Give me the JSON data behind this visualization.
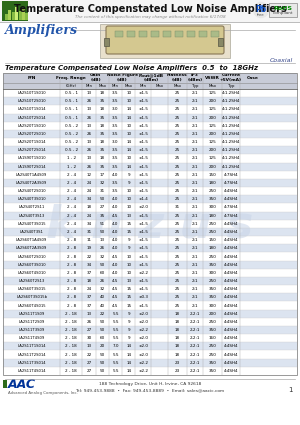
{
  "title": "Temperature Compenstated Low Noise Amplifiers",
  "subtitle": "The content of this specification may change without notification 6/17/08",
  "section_title": "Amplifiers",
  "coaxial_label": "Coaxial",
  "table_title": "Temperature Compensated Low Noise Amplifiers  0.5  to  18GHz",
  "rows": [
    [
      "LA2S10T1S010",
      "0.5 - 1",
      "13",
      "18",
      "3.5",
      "10",
      "±1.5",
      "25",
      "2:1",
      "125",
      "4:1.2SH4"
    ],
    [
      "LA2S10T2S010",
      "0.5 - 1",
      "26",
      "35",
      "3.5",
      "10",
      "±1.5",
      "25",
      "2:1",
      "200",
      "4:1.2SH4"
    ],
    [
      "LA2S10T1S014",
      "0.5 - 1",
      "13",
      "18",
      "3.0",
      "14",
      "±1.5",
      "25",
      "2:1",
      "125",
      "4:1.2SH4"
    ],
    [
      "LA2S10T2S014",
      "0.5 - 1",
      "26",
      "35",
      "3.5",
      "14",
      "±1.5",
      "25",
      "2:1",
      "200",
      "4:1.2SH4"
    ],
    [
      "LA2S20T1S010",
      "0.5 - 2",
      "13",
      "18",
      "3.5",
      "10",
      "±1.5",
      "25",
      "2:1",
      "125",
      "4:1.2SH4"
    ],
    [
      "LA2S20T2S010",
      "0.5 - 2",
      "26",
      "35",
      "3.5",
      "10",
      "±1.5",
      "25",
      "2:1",
      "200",
      "4:1.2SH4"
    ],
    [
      "LA2S20T1S014",
      "0.5 - 2",
      "13",
      "18",
      "3.0",
      "14",
      "±1.5",
      "25",
      "2:1",
      "125",
      "4:1.2SH4"
    ],
    [
      "LA2S20T2S014",
      "0.5 - 2",
      "26",
      "35",
      "3.5",
      "14",
      "±1.5",
      "25",
      "2:1",
      "200",
      "4:1.2SH4"
    ],
    [
      "LA1S90T1S010",
      "1 - 2",
      "13",
      "18",
      "3.5",
      "10",
      "±1.5",
      "25",
      "2:1",
      "125",
      "4:1.2SH4"
    ],
    [
      "LA1S90T2S014",
      "1 - 2",
      "26",
      "35",
      "3.5",
      "14",
      "±1.5",
      "25",
      "2:1",
      "200",
      "4:1.2SH4"
    ],
    [
      "LA2S40T1A4S09",
      "2 - 4",
      "12",
      "17",
      "4.0",
      "9",
      "±1.5",
      "25",
      "2:1",
      "150",
      "4:7SH4"
    ],
    [
      "LA2S40T2A3S09",
      "2 - 4",
      "24",
      "32",
      "3.5",
      "9",
      "±1.5",
      "25",
      "2:1",
      "180",
      "4:7SH4"
    ],
    [
      "LA2S40T2S010",
      "2 - 4",
      "24",
      "31",
      "3.5",
      "10",
      "±1.5",
      "25",
      "2:1",
      "250",
      "4:4SH4"
    ],
    [
      "LA2S40T3S010",
      "2 - 4",
      "34",
      "50",
      "4.0",
      "10",
      "±1.4",
      "25",
      "2:1",
      "350",
      "4:4SH4"
    ],
    [
      "LA2S40T2S11",
      "2 - 4",
      "18",
      "27",
      "4.0",
      "10",
      "±2.0",
      "31",
      "2:1",
      "300",
      "4:7SH4"
    ],
    [
      "LA2S40T3S13",
      "2 - 4",
      "24",
      "35",
      "4.5",
      "13",
      "±1.5",
      "25",
      "2:1",
      "180",
      "4:7SH4"
    ],
    [
      "LA2S40T3S015",
      "2 - 4",
      "34",
      "51",
      "4.0",
      "15",
      "±1.5",
      "25",
      "2:1",
      "250",
      "4:4SH4"
    ],
    [
      "LA2S40T3S1",
      "2 - 4",
      "31",
      "50",
      "4.0",
      "15",
      "±1.5",
      "25",
      "2:1",
      "250",
      "4:4SH4"
    ],
    [
      "LA2S60T1A4S09",
      "2 - 8",
      "11",
      "13",
      "4.0",
      "9",
      "±1.5",
      "25",
      "2:1",
      "150",
      "4:4SH4"
    ],
    [
      "LA2S60T2A3S09",
      "2 - 8",
      "19",
      "26",
      "4.0",
      "9",
      "±1.5",
      "25",
      "2:1",
      "180",
      "4:4SH4"
    ],
    [
      "LA2S60T2S010",
      "2 - 8",
      "22",
      "32",
      "4.5",
      "10",
      "±1.5",
      "25",
      "2:1",
      "250",
      "4:4SH4"
    ],
    [
      "LA2S60T3S010",
      "2 - 8",
      "34",
      "50",
      "4.0",
      "10",
      "±1.5",
      "25",
      "2:1",
      "350",
      "4:4SH4"
    ],
    [
      "LA2S60T4S010",
      "2 - 8",
      "37",
      "60",
      "4.0",
      "10",
      "±2.2",
      "25",
      "2:1",
      "300",
      "4:4SH4"
    ],
    [
      "LA2S60T2S13",
      "2 - 8",
      "18",
      "26",
      "4.5",
      "13",
      "±1.5",
      "25",
      "2:1",
      "250",
      "4:4SH4"
    ],
    [
      "LA2S60T3S015",
      "2 - 8",
      "24",
      "32",
      "4.5",
      "15",
      "±1.5",
      "25",
      "2:1",
      "350",
      "4:4SH4"
    ],
    [
      "LA2S60T3S015b",
      "2 - 8",
      "37",
      "40",
      "4.5",
      "15",
      "±0.3",
      "25",
      "2:1",
      "350",
      "4:4SH4"
    ],
    [
      "LA2S60T4S015",
      "2 - 8",
      "37",
      "40",
      "4.5",
      "15",
      "±1.5",
      "25",
      "2:1",
      "300",
      "4:4SH4"
    ],
    [
      "LA2S11T1S09",
      "2 - 18",
      "13",
      "22",
      "5.5",
      "9",
      "±2.0",
      "18",
      "2.2:1",
      "200",
      "4:4SH4"
    ],
    [
      "LA2S11T2S09",
      "2 - 18",
      "26",
      "50",
      "5.5",
      "9",
      "±2.0",
      "18",
      "2.2:1",
      "250",
      "4:4SH4"
    ],
    [
      "LA2S11T3S09",
      "2 - 18",
      "27",
      "50",
      "5.5",
      "9",
      "±2.2",
      "18",
      "2.2:1",
      "350",
      "4:4SH4"
    ],
    [
      "LA2S11T4S09",
      "2 - 18",
      "30",
      "60",
      "5.5",
      "9",
      "±2.0",
      "18",
      "2.2:1",
      "160",
      "4:4SH4"
    ],
    [
      "LA2S11T1S014",
      "2 - 18",
      "13",
      "20",
      "7.0",
      "14",
      "±2.0",
      "18",
      "2.2:1",
      "250",
      "4:4SH4"
    ],
    [
      "LA2S11T2S014",
      "2 - 18",
      "22",
      "50",
      "5.5",
      "14",
      "±2.0",
      "18",
      "2.2:1",
      "250",
      "4:4SH4"
    ],
    [
      "LA2S11T3S014",
      "2 - 18",
      "27",
      "50",
      "5.5",
      "14",
      "±2.2",
      "23",
      "2.2:1",
      "350",
      "4:4SH4"
    ],
    [
      "LA2S11T4S014",
      "2 - 18",
      "27",
      "50",
      "5.5",
      "14",
      "±2.2",
      "23",
      "2.2:1",
      "350",
      "4:4SH4"
    ]
  ],
  "footer_address": "188 Technology Drive, Unit H, Irvine, CA 92618",
  "footer_tel": "Tel: 949-453-9888  •  Fax: 949-453-8889  •  Email: sales@aacic.com",
  "bg_color": "#ffffff",
  "row_even": "#ffffff",
  "row_odd": "#dce4f0",
  "header_bg": "#c8ccd8",
  "watermark_color": "#c8d4e8"
}
